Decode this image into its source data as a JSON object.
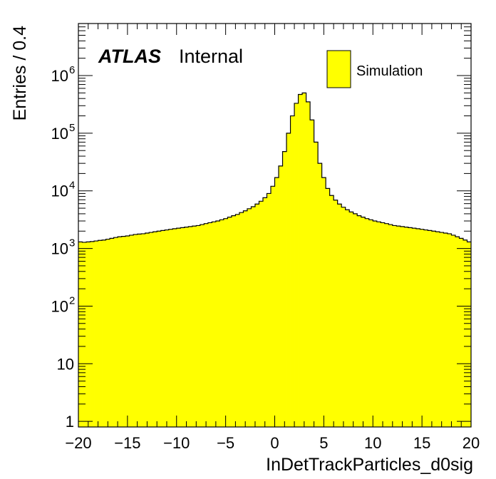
{
  "chart_data": {
    "type": "bar",
    "histogram": true,
    "ylabel": "Entries / 0.4",
    "xlabel": "InDetTrackParticles_d0sig",
    "xlim": [
      -20,
      20
    ],
    "ylim": [
      0.8,
      8000000
    ],
    "yscale": "log",
    "bin_width": 0.4,
    "fill_color": "#ffff00",
    "line_color": "#000000",
    "atlas_label": "ATLAS",
    "atlas_status": "Internal",
    "legend": {
      "placement": "top-right",
      "entries": [
        "Simulation"
      ]
    },
    "x_tick_labels": [
      "−20",
      "−15",
      "−10",
      "−5",
      "0",
      "5",
      "10",
      "15",
      "20"
    ],
    "x_tick_values": [
      -20,
      -15,
      -10,
      -5,
      0,
      5,
      10,
      15,
      20
    ],
    "y_tick_labels": [
      {
        "value": 1,
        "base": "1",
        "exp": ""
      },
      {
        "value": 10,
        "base": "10",
        "exp": ""
      },
      {
        "value": 100,
        "base": "10",
        "exp": "2"
      },
      {
        "value": 1000,
        "base": "10",
        "exp": "3"
      },
      {
        "value": 10000,
        "base": "10",
        "exp": "4"
      },
      {
        "value": 100000,
        "base": "10",
        "exp": "5"
      },
      {
        "value": 1000000,
        "base": "10",
        "exp": "6"
      }
    ],
    "bin_edges_start": -20,
    "bin_contents": [
      1300,
      1280,
      1300,
      1320,
      1350,
      1380,
      1400,
      1450,
      1500,
      1550,
      1600,
      1620,
      1650,
      1700,
      1750,
      1780,
      1800,
      1850,
      1900,
      1950,
      2000,
      2050,
      2100,
      2150,
      2200,
      2250,
      2300,
      2350,
      2400,
      2450,
      2500,
      2600,
      2700,
      2800,
      2900,
      3000,
      3150,
      3300,
      3500,
      3700,
      3900,
      4200,
      4500,
      4900,
      5300,
      5900,
      6600,
      7600,
      9000,
      12000,
      17000,
      27000,
      48000,
      100000,
      200000,
      330000,
      470000,
      500000,
      350000,
      170000,
      70000,
      30000,
      17000,
      11000,
      8300,
      6900,
      5900,
      5200,
      4700,
      4300,
      4000,
      3700,
      3500,
      3300,
      3150,
      3000,
      2900,
      2800,
      2700,
      2600,
      2500,
      2450,
      2400,
      2350,
      2300,
      2250,
      2200,
      2150,
      2100,
      2050,
      2000,
      1950,
      1900,
      1850,
      1800,
      1700,
      1600,
      1500,
      1400,
      1300
    ]
  }
}
